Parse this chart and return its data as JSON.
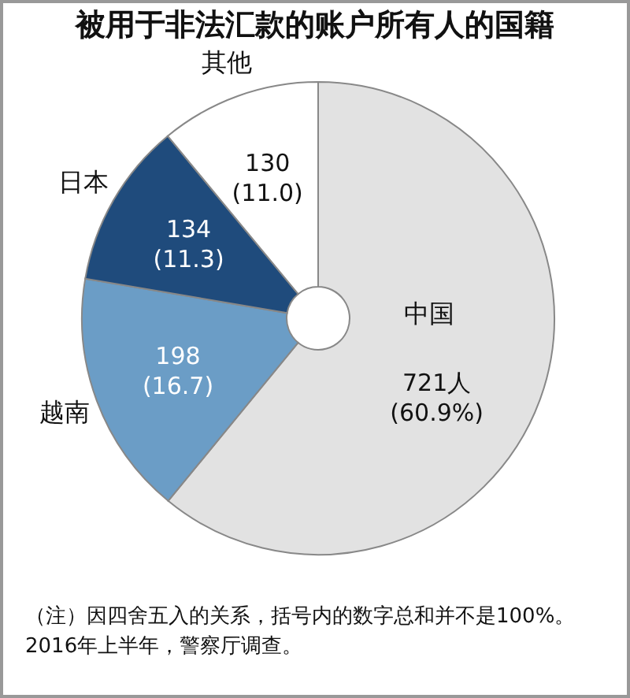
{
  "chart_data": {
    "type": "donut",
    "title": "被用于非法汇款的账户所有人的国籍",
    "categories": [
      "中国",
      "越南",
      "日本",
      "其他"
    ],
    "values": [
      721,
      198,
      134,
      130
    ],
    "colors": [
      "#e2e2e2",
      "#6b9dc6",
      "#1f4b7c",
      "#ffffff"
    ],
    "value_labels": [
      "721人\n(60.9%)",
      "198\n(16.7)",
      "134\n(11.3)",
      "130\n(11.0)"
    ],
    "annotations": [
      "（注）因四舍五入的关系，括号内的数字总和并不是100%。2016年上半年，警察厅调查。"
    ]
  }
}
